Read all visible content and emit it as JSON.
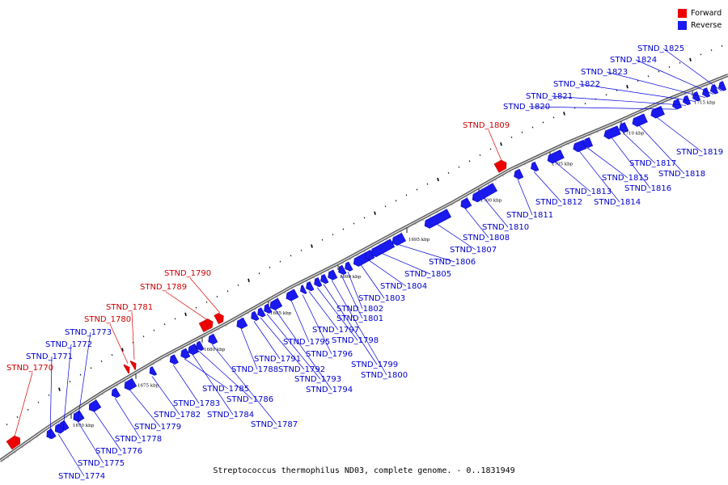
{
  "legend": {
    "forward_label": "Forward",
    "reverse_label": "Reverse",
    "forward_color": "#ee0000",
    "reverse_color": "#1a1aee"
  },
  "caption": "Streptococcus thermophilus ND03, complete genome. - 0..1831949",
  "axis": {
    "unit": "kbp",
    "ticks": [
      1670,
      1675,
      1680,
      1685,
      1690,
      1695,
      1700,
      1705,
      1710,
      1715
    ]
  },
  "genes": [
    {
      "name": "STND_1770",
      "strand": "forward"
    },
    {
      "name": "STND_1771",
      "strand": "reverse"
    },
    {
      "name": "STND_1772",
      "strand": "reverse"
    },
    {
      "name": "STND_1773",
      "strand": "reverse"
    },
    {
      "name": "STND_1774",
      "strand": "reverse"
    },
    {
      "name": "STND_1775",
      "strand": "reverse"
    },
    {
      "name": "STND_1776",
      "strand": "reverse"
    },
    {
      "name": "STND_1778",
      "strand": "reverse"
    },
    {
      "name": "STND_1779",
      "strand": "reverse"
    },
    {
      "name": "STND_1780",
      "strand": "forward"
    },
    {
      "name": "STND_1781",
      "strand": "forward"
    },
    {
      "name": "STND_1782",
      "strand": "reverse"
    },
    {
      "name": "STND_1783",
      "strand": "reverse"
    },
    {
      "name": "STND_1784",
      "strand": "reverse"
    },
    {
      "name": "STND_1785",
      "strand": "reverse"
    },
    {
      "name": "STND_1786",
      "strand": "reverse"
    },
    {
      "name": "STND_1787",
      "strand": "reverse"
    },
    {
      "name": "STND_1788",
      "strand": "reverse"
    },
    {
      "name": "STND_1789",
      "strand": "forward"
    },
    {
      "name": "STND_1790",
      "strand": "forward"
    },
    {
      "name": "STND_1791",
      "strand": "reverse"
    },
    {
      "name": "STND_1792",
      "strand": "reverse"
    },
    {
      "name": "STND_1793",
      "strand": "reverse"
    },
    {
      "name": "STND_1794",
      "strand": "reverse"
    },
    {
      "name": "STND_1795",
      "strand": "reverse"
    },
    {
      "name": "STND_1796",
      "strand": "reverse"
    },
    {
      "name": "STND_1797",
      "strand": "reverse"
    },
    {
      "name": "STND_1798",
      "strand": "reverse"
    },
    {
      "name": "STND_1799",
      "strand": "reverse"
    },
    {
      "name": "STND_1800",
      "strand": "reverse"
    },
    {
      "name": "STND_1801",
      "strand": "reverse"
    },
    {
      "name": "STND_1802",
      "strand": "reverse"
    },
    {
      "name": "STND_1803",
      "strand": "reverse"
    },
    {
      "name": "STND_1804",
      "strand": "reverse"
    },
    {
      "name": "STND_1805",
      "strand": "reverse"
    },
    {
      "name": "STND_1806",
      "strand": "reverse"
    },
    {
      "name": "STND_1807",
      "strand": "reverse"
    },
    {
      "name": "STND_1808",
      "strand": "reverse"
    },
    {
      "name": "STND_1809",
      "strand": "forward"
    },
    {
      "name": "STND_1810",
      "strand": "reverse"
    },
    {
      "name": "STND_1811",
      "strand": "reverse"
    },
    {
      "name": "STND_1812",
      "strand": "reverse"
    },
    {
      "name": "STND_1813",
      "strand": "reverse"
    },
    {
      "name": "STND_1814",
      "strand": "reverse"
    },
    {
      "name": "STND_1815",
      "strand": "reverse"
    },
    {
      "name": "STND_1816",
      "strand": "reverse"
    },
    {
      "name": "STND_1817",
      "strand": "reverse"
    },
    {
      "name": "STND_1818",
      "strand": "reverse"
    },
    {
      "name": "STND_1819",
      "strand": "reverse"
    },
    {
      "name": "STND_1820",
      "strand": "reverse"
    },
    {
      "name": "STND_1821",
      "strand": "reverse"
    },
    {
      "name": "STND_1822",
      "strand": "reverse"
    },
    {
      "name": "STND_1823",
      "strand": "reverse"
    },
    {
      "name": "STND_1824",
      "strand": "reverse"
    },
    {
      "name": "STND_1825",
      "strand": "reverse"
    }
  ]
}
